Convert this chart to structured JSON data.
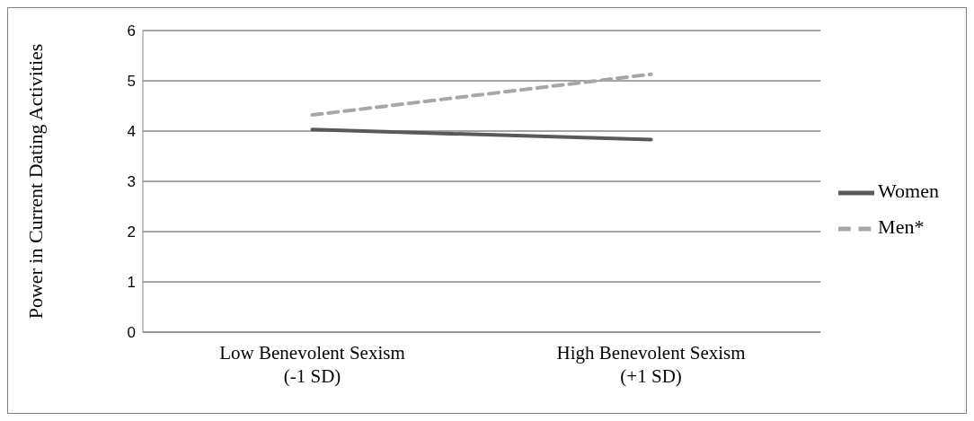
{
  "chart_data": {
    "type": "line",
    "ylabel": "Power in Current Dating Activities",
    "categories": [
      "Low Benevolent Sexism (-1 SD)",
      "High Benevolent Sexism (+1 SD)"
    ],
    "series": [
      {
        "name": "Women",
        "color": "#595959",
        "values": [
          4.03,
          3.83
        ],
        "line_style": "solid"
      },
      {
        "name": "Men*",
        "color": "#a6a6a6",
        "values": [
          4.32,
          5.13
        ],
        "line_style": "dashed"
      }
    ],
    "ylim": [
      0,
      6
    ],
    "yticks": [
      0,
      1,
      2,
      3,
      4,
      5,
      6
    ],
    "grid": "y",
    "legend": "right",
    "marker": "none"
  }
}
